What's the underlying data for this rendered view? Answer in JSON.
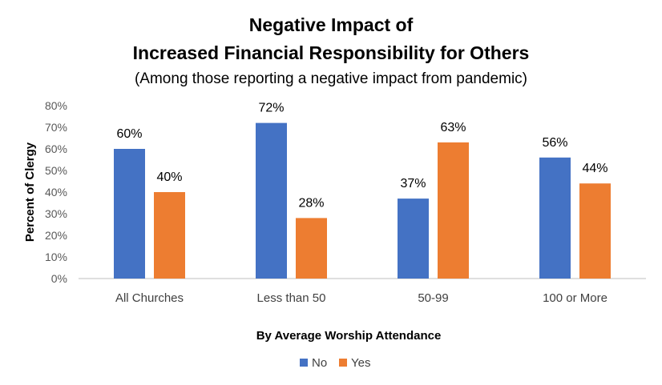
{
  "chart_data": {
    "type": "bar",
    "title": "Negative Impact of",
    "title_line2": "Increased Financial Responsibility for Others",
    "subtitle": "(Among those reporting a negative impact from pandemic)",
    "xlabel": "By Average Worship Attendance",
    "ylabel": "Percent of Clergy",
    "ylim": [
      0,
      80
    ],
    "yticks": [
      0,
      10,
      20,
      30,
      40,
      50,
      60,
      70,
      80
    ],
    "ytick_labels": [
      "0%",
      "10%",
      "20%",
      "30%",
      "40%",
      "50%",
      "60%",
      "70%",
      "80%"
    ],
    "categories": [
      "All Churches",
      "Less than 50",
      "50-99",
      "100 or More"
    ],
    "series": [
      {
        "name": "No",
        "color": "#4472C4",
        "values": [
          60,
          72,
          37,
          56
        ],
        "labels": [
          "60%",
          "72%",
          "37%",
          "56%"
        ]
      },
      {
        "name": "Yes",
        "color": "#ED7D31",
        "values": [
          40,
          28,
          63,
          44
        ],
        "labels": [
          "40%",
          "28%",
          "63%",
          "44%"
        ]
      }
    ],
    "legend_position": "bottom-center"
  }
}
